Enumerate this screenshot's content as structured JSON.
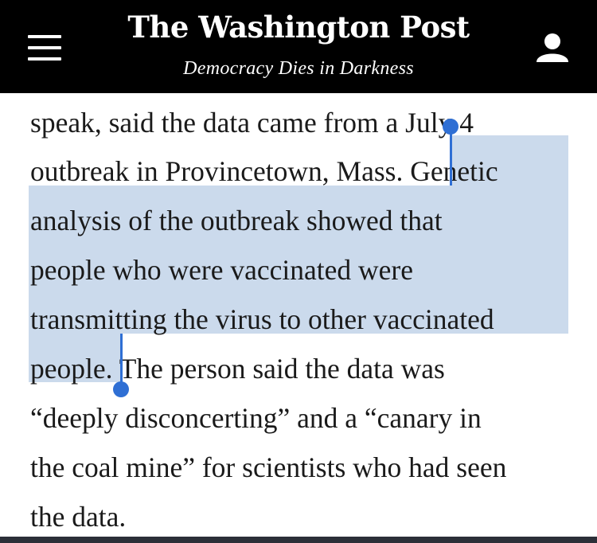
{
  "header": {
    "logo_text": "The Washington Post",
    "tagline": "Democracy Dies in Darkness",
    "menu_icon": "hamburger-menu-icon",
    "user_icon": "user-account-icon",
    "background": "#000000"
  },
  "article": {
    "lines": [
      "speak, said the data came from a July 4",
      "outbreak in Provincetown, Mass. Genetic",
      "analysis of the outbreak showed that",
      "people who were vaccinated were",
      "transmitting the virus to other vaccinated",
      "people. The person said the data was",
      "“deeply disconcerting” and a “canary in",
      "the coal mine” for scientists who had seen",
      "the data."
    ],
    "selected_text": "Genetic analysis of the outbreak showed that people who were vaccinated were transmitting the virus to other vaccinated people.",
    "selection_color": "#cbdaec",
    "handle_color": "#2f6fd4"
  }
}
